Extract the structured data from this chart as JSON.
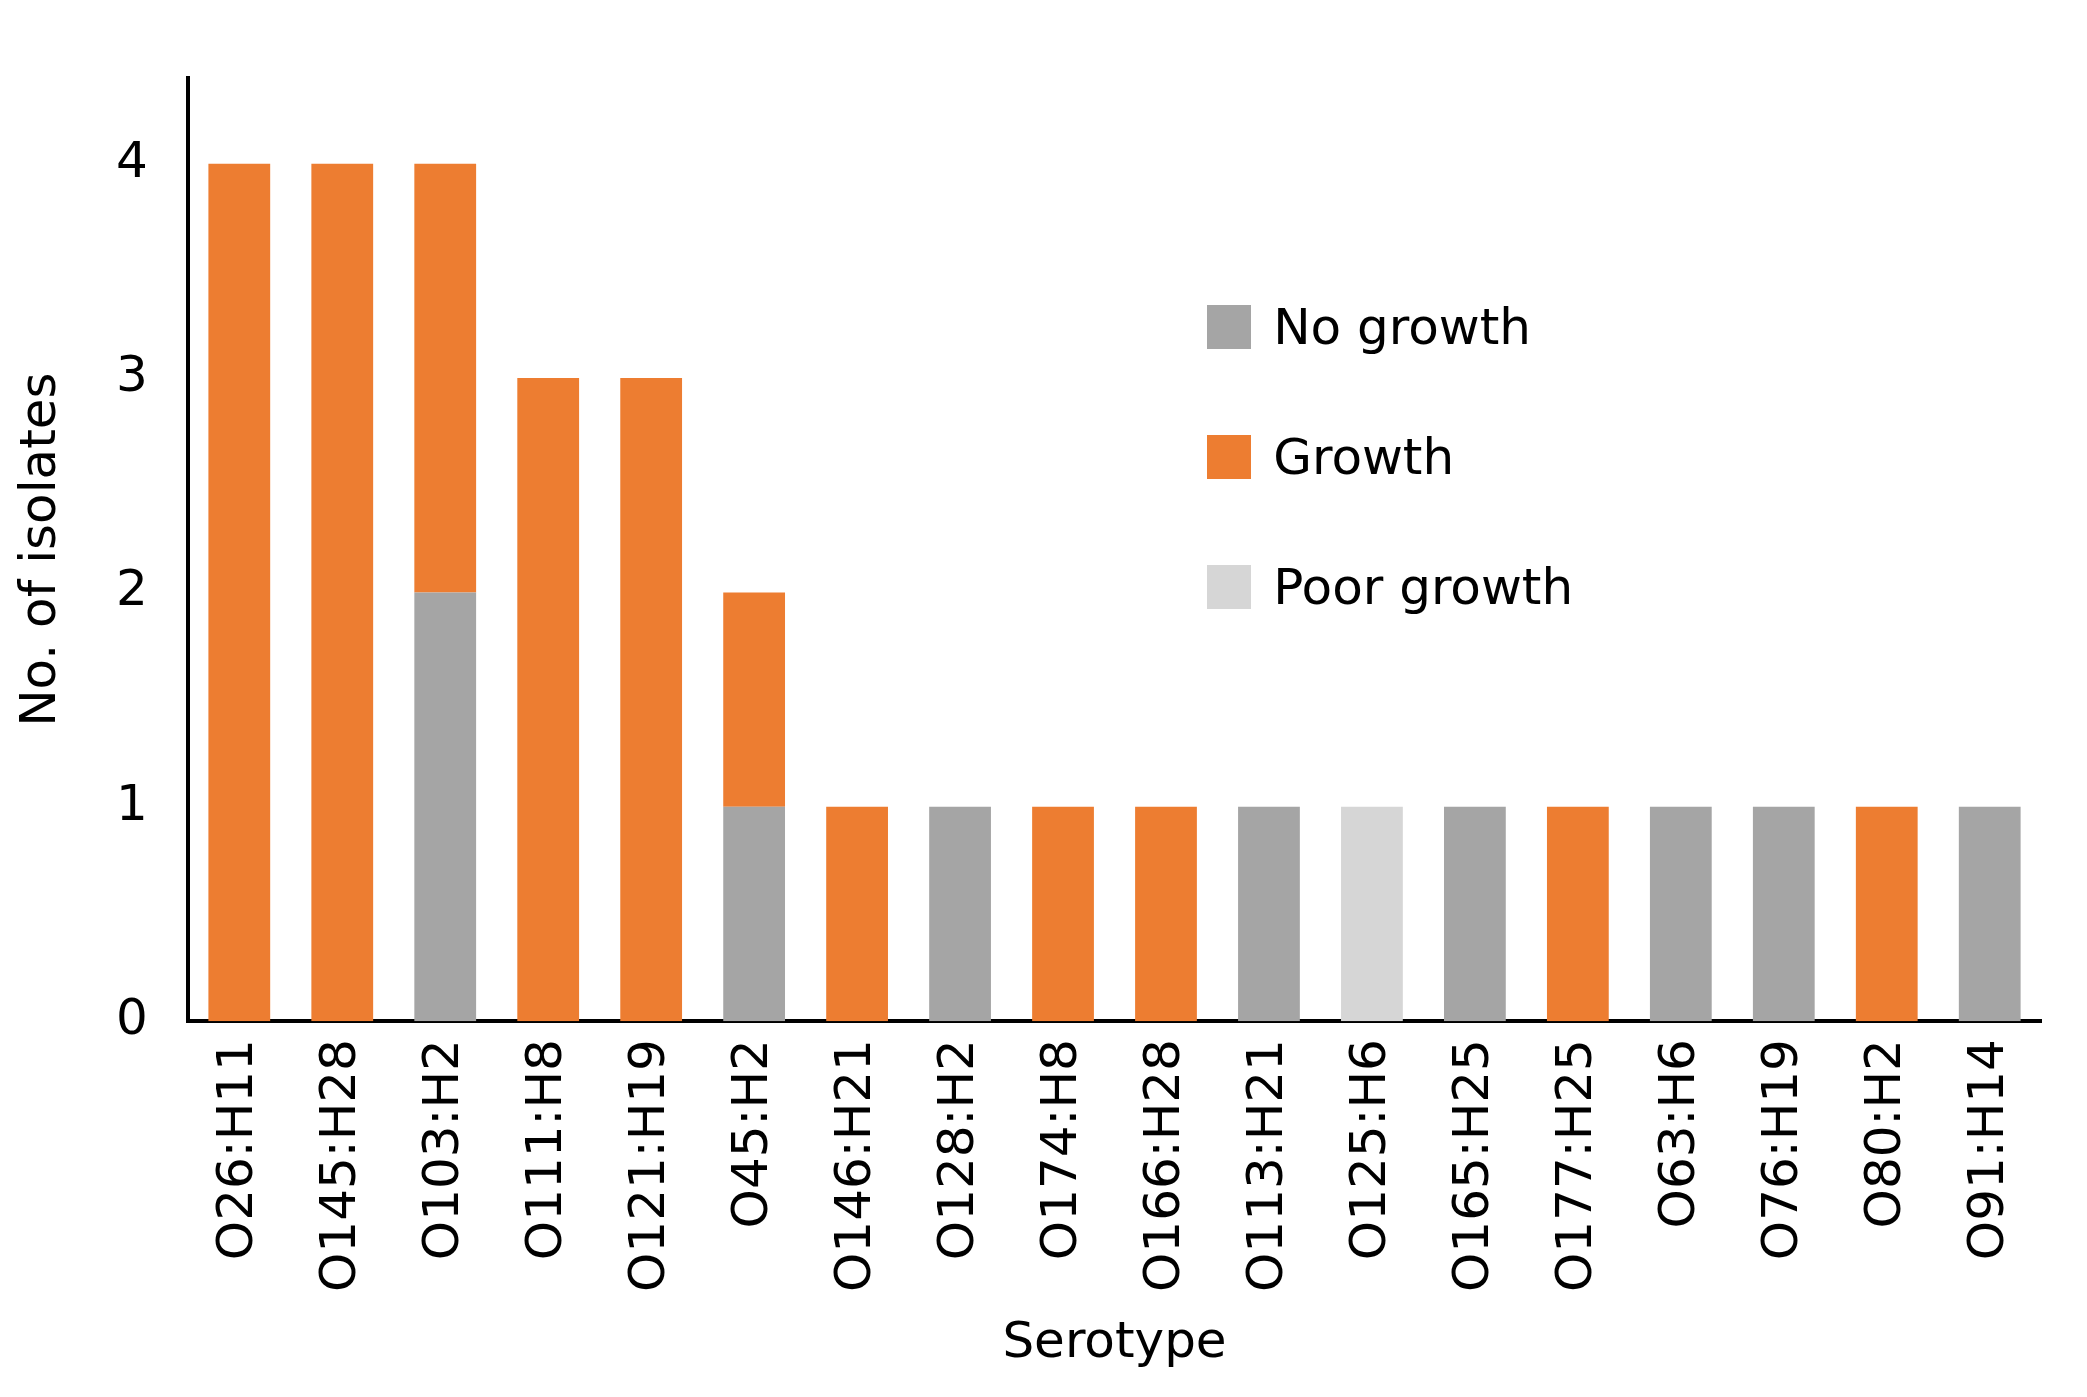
{
  "chart_data": {
    "type": "bar",
    "stacked": true,
    "xlabel": "Serotype",
    "ylabel": "No. of isolates",
    "categories": [
      "O26:H11",
      "O145:H28",
      "O103:H2",
      "O111:H8",
      "O121:H19",
      "O45:H2",
      "O146:H21",
      "O128:H2",
      "O174:H8",
      "O166:H28",
      "O113:H21",
      "O125:H6",
      "O165:H25",
      "O177:H25",
      "O63:H6",
      "O76:H19",
      "O80:H2",
      "O91:H14"
    ],
    "series": [
      {
        "name": "No growth",
        "color": "#a5a5a5",
        "values": [
          0,
          0,
          2,
          0,
          0,
          1,
          0,
          1,
          0,
          0,
          1,
          0,
          1,
          0,
          1,
          1,
          0,
          1
        ]
      },
      {
        "name": "Growth",
        "color": "#ed7d31",
        "values": [
          4,
          4,
          2,
          3,
          3,
          1,
          1,
          0,
          1,
          1,
          0,
          0,
          0,
          1,
          0,
          0,
          1,
          0
        ]
      },
      {
        "name": "Poor growth",
        "color": "#d6d6d6",
        "values": [
          0,
          0,
          0,
          0,
          0,
          0,
          0,
          0,
          0,
          0,
          0,
          1,
          0,
          0,
          0,
          0,
          0,
          0
        ]
      }
    ],
    "ylim": [
      0,
      4.4
    ],
    "yticks": [
      0,
      1,
      2,
      3,
      4
    ],
    "grid": false,
    "legend": "top right"
  }
}
